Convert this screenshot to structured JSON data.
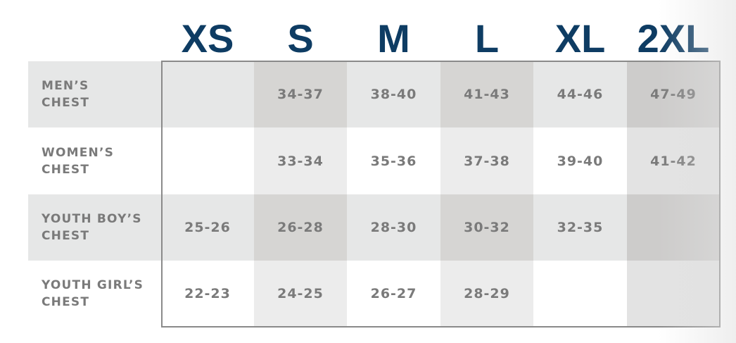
{
  "table": {
    "columns": [
      "XS",
      "S",
      "M",
      "L",
      "XL",
      "2XL"
    ],
    "rows": [
      {
        "label": [
          "MEN’S",
          "CHEST"
        ],
        "cells": [
          null,
          "34-37",
          "38-40",
          "41-43",
          "44-46",
          "47-49"
        ]
      },
      {
        "label": [
          "WOMEN’S",
          "CHEST"
        ],
        "cells": [
          null,
          "33-34",
          "35-36",
          "37-38",
          "39-40",
          "41-42"
        ]
      },
      {
        "label": [
          "YOUTH BOY’S",
          "CHEST"
        ],
        "cells": [
          "25-26",
          "26-28",
          "28-30",
          "30-32",
          "32-35",
          null
        ]
      },
      {
        "label": [
          "YOUTH GIRL’S",
          "CHEST"
        ],
        "cells": [
          "22-23",
          "24-25",
          "26-27",
          "28-29",
          null,
          null
        ]
      }
    ]
  }
}
